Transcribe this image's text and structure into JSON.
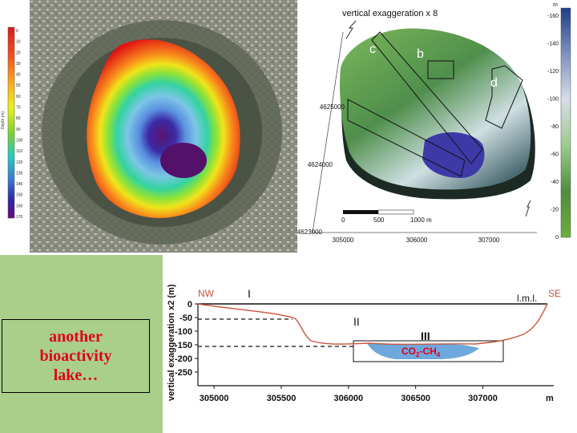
{
  "left_panel": {
    "callout_text": "another\nbioactivity\nlake…"
  },
  "depth_scale": {
    "unit_label": "Depth (m)",
    "ticks": [
      "0",
      "10",
      "20",
      "30",
      "40",
      "50",
      "60",
      "70",
      "80",
      "90",
      "100",
      "110",
      "120",
      "130",
      "140",
      "150",
      "160",
      "170"
    ]
  },
  "terrain_view": {
    "title": "vertical exaggeration x 8",
    "boxes": [
      "c",
      "b",
      "d"
    ],
    "northing_labels": [
      "4625000",
      "4624000",
      "4623000"
    ],
    "easting_labels": [
      "305000",
      "306000",
      "307000"
    ],
    "scale_bar": [
      "0",
      "500",
      "1000 m"
    ],
    "colorbar_unit": "m",
    "colorbar_ticks": [
      "-160",
      "-140",
      "-120",
      "-100",
      "-80",
      "-60",
      "-40",
      "-20",
      "0"
    ]
  },
  "profile": {
    "y_axis_label": "vertical exaggeration x2 (m)",
    "y_ticks": [
      "0",
      "-50",
      "-100",
      "-150",
      "-200",
      "-250"
    ],
    "x_ticks": [
      "305000",
      "305500",
      "306000",
      "306500",
      "307000"
    ],
    "x_unit": "m",
    "end_left": "NW",
    "end_right": "SE",
    "level_label": "l.m.l.",
    "zones": [
      "I",
      "II",
      "III"
    ],
    "gas_label_main": "CO",
    "gas_label_sub1": "2",
    "gas_label_mid": "-CH",
    "gas_label_sub2": "4"
  },
  "colors": {
    "panel_green": "#a9cf8b",
    "callout_text": "#e0001a",
    "profile_line": "#c8553d",
    "water": "#6fa8dc"
  }
}
